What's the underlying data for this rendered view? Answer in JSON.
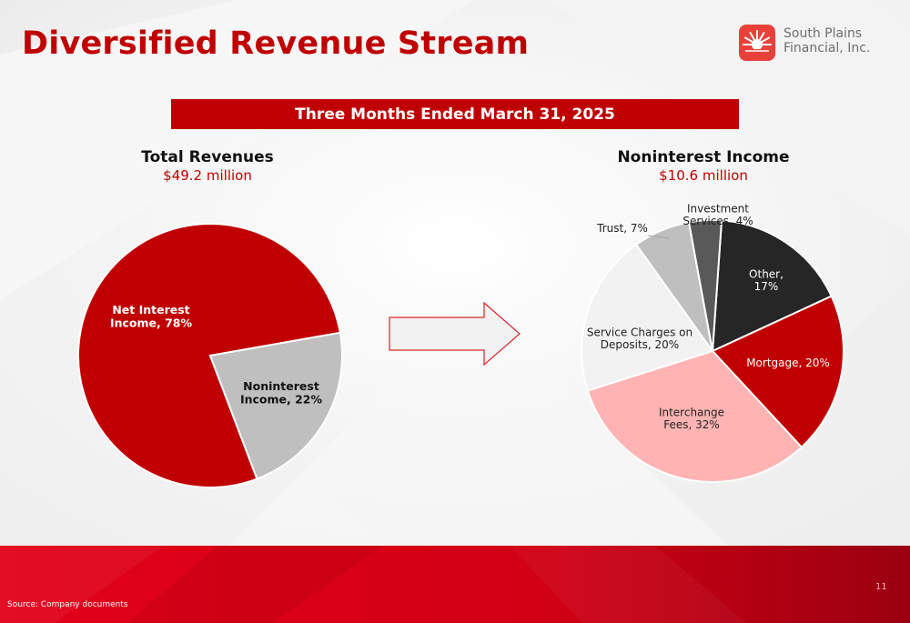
{
  "title": "Diversified Revenue Stream",
  "company": {
    "line1": "South Plains",
    "line2": "Financial, Inc.",
    "logo_icon": "radiating-sun-icon",
    "brand_color": "#c00000"
  },
  "period_banner": "Three Months Ended March 31, 2025",
  "charts": {
    "left": {
      "heading": "Total Revenues",
      "subheading": "$49.2 million"
    },
    "right": {
      "heading": "Noninterest Income",
      "subheading": "$10.6 million"
    }
  },
  "arrow_icon": "right-arrow-icon",
  "chart_data": [
    {
      "type": "pie",
      "title": "Total Revenues",
      "subtitle": "$49.2 million",
      "labels": [
        "Net Interest Income",
        "Noninterest Income"
      ],
      "values": [
        78,
        22
      ],
      "unit": "%",
      "data_labels": [
        [
          "Net Interest",
          "Income, 78%"
        ],
        [
          "Noninterest",
          "Income, 22%"
        ]
      ],
      "colors": [
        "#c00000",
        "#bfbfbf"
      ]
    },
    {
      "type": "pie",
      "title": "Noninterest Income",
      "subtitle": "$10.6 million",
      "labels": [
        "Other",
        "Mortgage",
        "Interchange Fees",
        "Service Charges on Deposits",
        "Trust",
        "Investment Services"
      ],
      "values": [
        17,
        20,
        32,
        20,
        7,
        4
      ],
      "unit": "%",
      "data_labels": [
        [
          "Other,",
          "17%"
        ],
        [
          "Mortgage, 20%"
        ],
        [
          "Interchange",
          "Fees, 32%"
        ],
        [
          "Service Charges on",
          "Deposits, 20%"
        ],
        [
          "Trust, 7%"
        ],
        [
          "Investment",
          "Services, 4%"
        ]
      ],
      "colors": [
        "#262626",
        "#c00000",
        "#ffb3b3",
        "#f2f2f2",
        "#bfbfbf",
        "#595959"
      ]
    }
  ],
  "footer": {
    "source": "Source: Company documents",
    "page_number": "11"
  }
}
